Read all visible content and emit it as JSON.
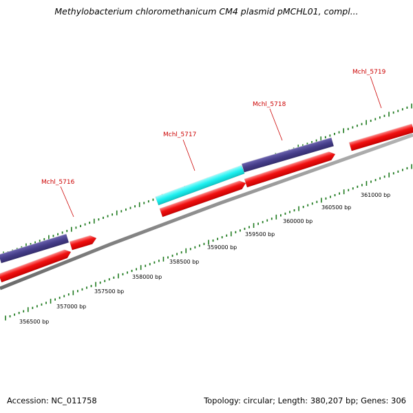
{
  "title": "Methylobacterium chloromethanicum CM4 plasmid pMCHL01, compl...",
  "footer": {
    "accession": "Accession: NC_011758",
    "summary": "Topology: circular; Length: 380,207 bp; Genes: 306"
  },
  "colors": {
    "forward_cds": "#f00e0e",
    "reverse_cds": "#463e8a",
    "highlight_cds": "#1ef0f0",
    "backbone": "#7a7a7a",
    "ticks": "#1e7a1e",
    "gene_label": "#cc0000"
  },
  "chart_data": {
    "type": "genome-map",
    "scale_labels": [
      "356500 bp",
      "357000 bp",
      "357500 bp",
      "358000 bp",
      "358500 bp",
      "359000 bp",
      "359500 bp",
      "360000 bp",
      "360500 bp",
      "361000 bp"
    ],
    "genes": [
      {
        "label": "Mchl_5716"
      },
      {
        "label": "Mchl_5717"
      },
      {
        "label": "Mchl_5718"
      },
      {
        "label": "Mchl_5719"
      }
    ]
  }
}
